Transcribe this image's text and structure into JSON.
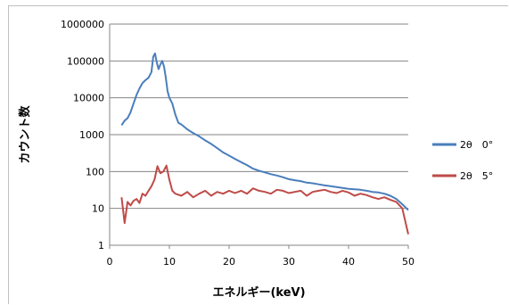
{
  "chart_data": {
    "type": "line",
    "xlabel": "エネルギー(keV)",
    "ylabel": "カウント数",
    "xlim": [
      0,
      50
    ],
    "ylim": [
      1,
      1000000
    ],
    "yscale": "log",
    "grid": "horizontal",
    "legend_position": "right",
    "x_ticks": [
      "0",
      "10",
      "20",
      "30",
      "40",
      "50"
    ],
    "y_ticks": [
      "1",
      "10",
      "100",
      "1000",
      "10000",
      "100000",
      "1000000"
    ],
    "series": [
      {
        "name": "2θ　0°",
        "color": "#4a7ebb",
        "x": [
          2,
          2.5,
          3,
          3.5,
          4,
          4.5,
          5,
          5.5,
          6,
          6.5,
          7,
          7.3,
          7.6,
          7.9,
          8.2,
          8.5,
          8.8,
          9.1,
          9.4,
          9.7,
          10,
          10.5,
          11,
          11.5,
          12,
          13,
          14,
          15,
          16,
          17,
          18,
          19,
          20,
          21,
          22,
          23,
          24,
          25,
          26,
          27,
          28,
          29,
          30,
          31,
          32,
          33,
          34,
          35,
          36,
          37,
          38,
          39,
          40,
          41,
          42,
          43,
          44,
          45,
          46,
          47,
          48,
          49,
          50
        ],
        "y": [
          1800,
          2400,
          2800,
          4000,
          7000,
          12000,
          18000,
          25000,
          30000,
          35000,
          50000,
          130000,
          160000,
          90000,
          60000,
          80000,
          100000,
          70000,
          35000,
          15000,
          10000,
          7000,
          3500,
          2100,
          1900,
          1400,
          1100,
          900,
          700,
          560,
          430,
          330,
          270,
          220,
          180,
          150,
          120,
          105,
          95,
          85,
          78,
          70,
          62,
          58,
          55,
          50,
          48,
          45,
          42,
          40,
          38,
          36,
          34,
          33,
          32,
          30,
          28,
          27,
          25,
          22,
          18,
          13,
          9
        ]
      },
      {
        "name": "2θ　5°",
        "color": "#be4b48",
        "x": [
          2,
          2.5,
          3,
          3.5,
          4,
          4.5,
          5,
          5.5,
          6,
          6.5,
          7,
          7.5,
          8,
          8.5,
          9,
          9.5,
          10,
          10.5,
          11,
          12,
          13,
          14,
          15,
          16,
          17,
          18,
          19,
          20,
          21,
          22,
          23,
          24,
          25,
          26,
          27,
          28,
          29,
          30,
          31,
          32,
          33,
          34,
          35,
          36,
          37,
          38,
          39,
          40,
          41,
          42,
          43,
          44,
          45,
          46,
          47,
          48,
          49,
          50
        ],
        "y": [
          20,
          4,
          15,
          12,
          16,
          18,
          14,
          25,
          22,
          30,
          40,
          60,
          140,
          90,
          100,
          145,
          60,
          30,
          25,
          22,
          28,
          20,
          25,
          30,
          22,
          28,
          25,
          30,
          26,
          30,
          25,
          35,
          30,
          28,
          25,
          32,
          30,
          26,
          28,
          30,
          22,
          28,
          30,
          32,
          28,
          26,
          30,
          27,
          22,
          25,
          23,
          20,
          18,
          20,
          17,
          15,
          10,
          2
        ]
      }
    ]
  }
}
